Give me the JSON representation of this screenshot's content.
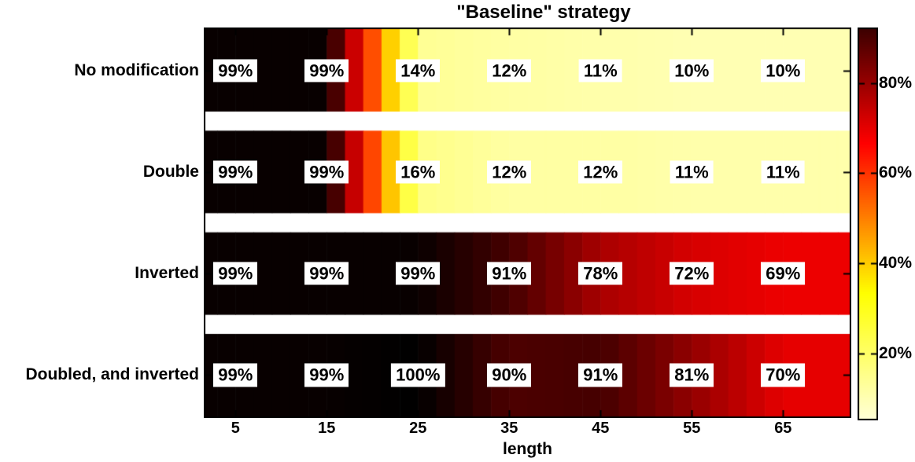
{
  "chart_data": {
    "type": "heatmap",
    "title": "\"Baseline\" strategy",
    "xlabel": "length",
    "colormap": "hot-reversed-black-high",
    "x_axis": {
      "tick_labels": [
        "5",
        "15",
        "25",
        "35",
        "45",
        "55",
        "65"
      ],
      "tick_values": [
        5,
        15,
        25,
        35,
        45,
        55,
        65
      ],
      "range": [
        1.7,
        72.3
      ]
    },
    "rows": [
      {
        "label": "No modification",
        "values_pct": [
          99,
          99,
          14,
          12,
          11,
          10,
          10
        ],
        "cell_labels": [
          "99%",
          "99%",
          "14%",
          "12%",
          "11%",
          "10%",
          "10%"
        ]
      },
      {
        "label": "Double",
        "values_pct": [
          99,
          99,
          16,
          12,
          12,
          11,
          11
        ],
        "cell_labels": [
          "99%",
          "99%",
          "16%",
          "12%",
          "12%",
          "11%",
          "11%"
        ]
      },
      {
        "label": "Inverted",
        "values_pct": [
          99,
          99,
          99,
          91,
          78,
          72,
          69
        ],
        "cell_labels": [
          "99%",
          "99%",
          "99%",
          "91%",
          "78%",
          "72%",
          "69%"
        ]
      },
      {
        "label": "Doubled, and inverted",
        "values_pct": [
          99,
          99,
          100,
          90,
          91,
          81,
          70
        ],
        "cell_labels": [
          "99%",
          "99%",
          "100%",
          "90%",
          "91%",
          "81%",
          "70%"
        ]
      }
    ],
    "colorbar": {
      "tick_labels": [
        "80%",
        "60%",
        "40%",
        "20%"
      ],
      "tick_values": [
        80,
        60,
        40,
        20
      ],
      "display_range_pct": [
        92,
        5.5
      ],
      "top_color_meaning": "high (black)",
      "bottom_color_meaning": "low (white)"
    },
    "colors": {
      "background": "#ffffff",
      "text": "#000000",
      "axis": "#000000"
    }
  }
}
